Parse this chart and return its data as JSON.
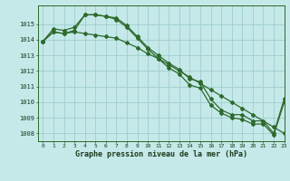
{
  "line1_y": [
    1013.9,
    1014.7,
    1014.6,
    1014.8,
    1015.6,
    1015.6,
    1015.5,
    1015.4,
    1014.9,
    1014.2,
    1013.5,
    1013.0,
    1012.5,
    1012.1,
    1011.5,
    1011.3,
    1010.2,
    1009.5,
    1009.2,
    1009.2,
    1008.8,
    1008.8,
    1008.0,
    1010.2
  ],
  "line2_y": [
    1013.9,
    1014.5,
    1014.4,
    1014.6,
    1015.6,
    1015.6,
    1015.5,
    1015.3,
    1014.8,
    1014.1,
    1013.4,
    1012.8,
    1012.2,
    1011.8,
    1011.1,
    1010.9,
    1009.8,
    1009.3,
    1009.0,
    1008.9,
    1008.6,
    1008.6,
    1007.9,
    1010.0
  ],
  "line3_y": [
    1013.9,
    1014.5,
    1014.4,
    1014.5,
    1014.4,
    1014.3,
    1014.2,
    1014.1,
    1013.8,
    1013.5,
    1013.1,
    1012.8,
    1012.4,
    1012.0,
    1011.6,
    1011.2,
    1010.8,
    1010.4,
    1010.0,
    1009.6,
    1009.2,
    1008.8,
    1008.4,
    1008.0
  ],
  "x": [
    0,
    1,
    2,
    3,
    4,
    5,
    6,
    7,
    8,
    9,
    10,
    11,
    12,
    13,
    14,
    15,
    16,
    17,
    18,
    19,
    20,
    21,
    22,
    23
  ],
  "xlabel": "Graphe pression niveau de la mer (hPa)",
  "ylim": [
    1007.5,
    1016.2
  ],
  "xlim": [
    -0.5,
    23
  ],
  "yticks": [
    1008,
    1009,
    1010,
    1011,
    1012,
    1013,
    1014,
    1015
  ],
  "xticks": [
    0,
    1,
    2,
    3,
    4,
    5,
    6,
    7,
    8,
    9,
    10,
    11,
    12,
    13,
    14,
    15,
    16,
    17,
    18,
    19,
    20,
    21,
    22,
    23
  ],
  "line_color": "#2d6a2d",
  "bg_color": "#c5e8e8",
  "grid_color": "#9ecece",
  "fig_bg": "#c5e8e8"
}
